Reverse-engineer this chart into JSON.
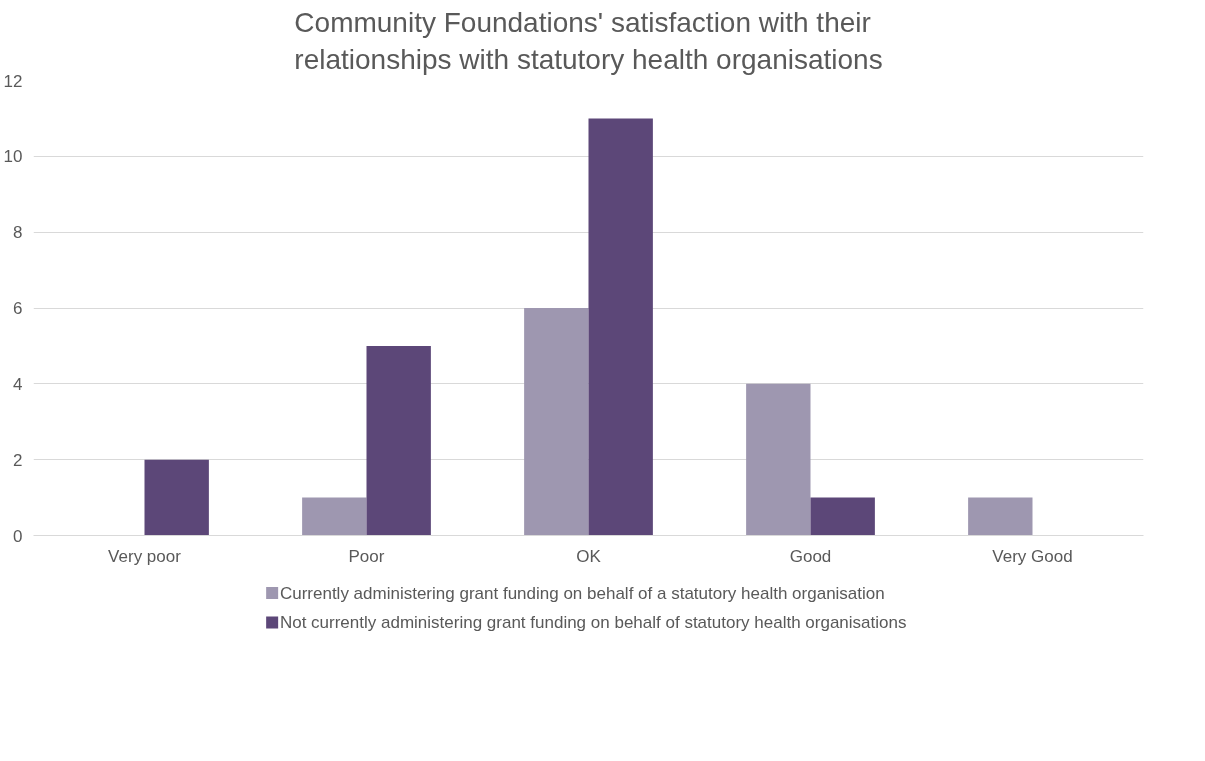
{
  "chart_data": {
    "type": "bar",
    "title": "Community Foundations' satisfaction with their relationships with statutory health organisations",
    "categories": [
      "Very poor",
      "Poor",
      "OK",
      "Good",
      "Very Good"
    ],
    "series": [
      {
        "name": "Currently administering grant funding on behalf of a statutory health organisation",
        "color": "#9e97b0",
        "values": [
          0,
          1,
          6,
          4,
          1
        ]
      },
      {
        "name": "Not currently administering grant funding on behalf of statutory health organisations",
        "color": "#5c4778",
        "values": [
          2,
          5,
          11,
          1,
          0
        ]
      }
    ],
    "ylim": [
      0,
      12
    ],
    "yticks": [
      0,
      2,
      4,
      6,
      8,
      10,
      12
    ],
    "grid": "y",
    "legend": "bottom"
  }
}
